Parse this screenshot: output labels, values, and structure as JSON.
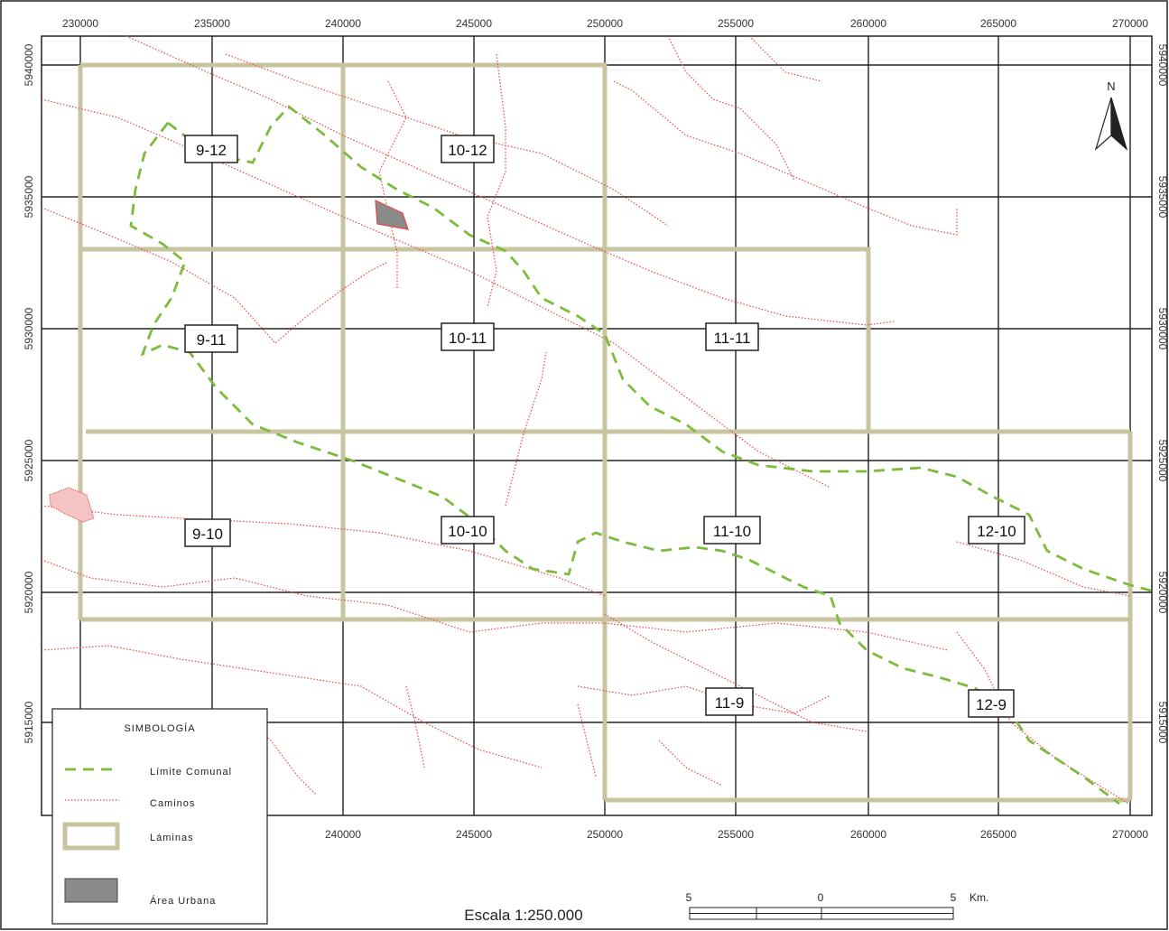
{
  "map": {
    "x_ticks": [
      "230000",
      "235000",
      "240000",
      "245000",
      "250000",
      "255000",
      "260000",
      "265000",
      "270000"
    ],
    "x_ticks_bottom": [
      "240000",
      "245000",
      "250000",
      "255000",
      "260000",
      "265000",
      "270000"
    ],
    "y_ticks": [
      "5940000",
      "5935000",
      "5930000",
      "5925000",
      "5920000",
      "5915000"
    ],
    "y_ticks_right": [
      "5940000",
      "5935000",
      "5930000",
      "5925000",
      "5920000",
      "5915000"
    ],
    "sheets": [
      "9-12",
      "10-12",
      "9-11",
      "10-11",
      "11-11",
      "9-10",
      "10-10",
      "11-10",
      "12-10",
      "11-9",
      "12-9"
    ],
    "north_label": "N",
    "colors": {
      "limite_comunal": "#7dbb3c",
      "caminos": "#ee4444",
      "laminas": "#c8c4a0",
      "area_urbana": "#8a8a8a",
      "grid": "#222222"
    }
  },
  "legend": {
    "title": "SIMBOLOGÍA",
    "items": [
      {
        "label": "Límite Comunal",
        "icon": "dashed-green-line"
      },
      {
        "label": "Caminos",
        "icon": "dotted-red-line"
      },
      {
        "label": "Láminas",
        "icon": "tan-rectangle"
      },
      {
        "label": "Área Urbana",
        "icon": "gray-fill"
      }
    ]
  },
  "scale": {
    "text": "Escala 1:250.000",
    "bar_labels": [
      "5",
      "0",
      "5"
    ],
    "unit": "Km."
  }
}
